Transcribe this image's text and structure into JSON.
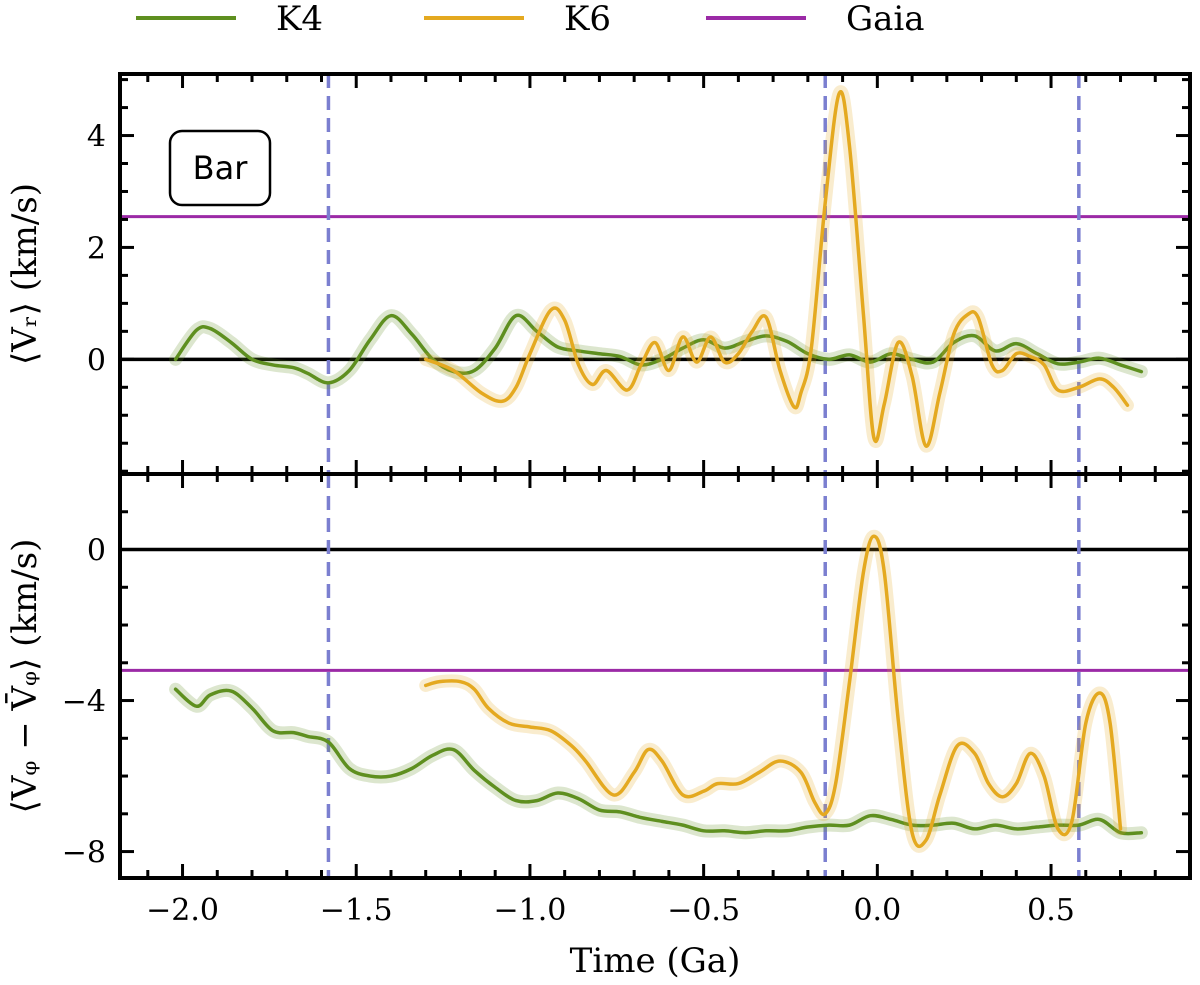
{
  "chart_data": {
    "type": "line",
    "legend": {
      "placement": "top",
      "entries": [
        {
          "name": "K4",
          "color": "#5e8f1f"
        },
        {
          "name": "K6",
          "color": "#e4a920"
        },
        {
          "name": "Gaia",
          "color": "#9b2aa6"
        }
      ]
    },
    "xlabel": "Time (Ga)",
    "xlim": [
      -2.18,
      0.9
    ],
    "xticks": [
      -2.0,
      -1.5,
      -1.0,
      -0.5,
      0.0,
      0.5
    ],
    "xtick_labels": [
      "−2.0",
      "−1.5",
      "−1.0",
      "−0.5",
      "0.0",
      "0.5"
    ],
    "vlines": [
      -1.58,
      -0.15,
      0.58
    ],
    "vline_color": "#7b7fd0",
    "panels": [
      {
        "name": "vr",
        "ylabel": "⟨Vᵣ⟩ (km/s)",
        "ylim": [
          -2.05,
          5.1
        ],
        "yticks": [
          0,
          2,
          4
        ],
        "ytick_labels": [
          "0",
          "2",
          "4"
        ],
        "annotation": "Bar",
        "zero_line": 0,
        "gaia": 2.55,
        "series": [
          {
            "name": "K4",
            "x": [
              -2.02,
              -1.96,
              -1.92,
              -1.86,
              -1.8,
              -1.74,
              -1.68,
              -1.64,
              -1.58,
              -1.52,
              -1.46,
              -1.4,
              -1.34,
              -1.28,
              -1.22,
              -1.16,
              -1.1,
              -1.04,
              -0.98,
              -0.92,
              -0.86,
              -0.8,
              -0.74,
              -0.68,
              -0.62,
              -0.56,
              -0.5,
              -0.44,
              -0.38,
              -0.32,
              -0.26,
              -0.2,
              -0.14,
              -0.08,
              -0.02,
              0.04,
              0.1,
              0.16,
              0.22,
              0.28,
              0.34,
              0.4,
              0.46,
              0.52,
              0.58,
              0.64,
              0.7,
              0.76
            ],
            "y": [
              0.0,
              0.52,
              0.55,
              0.3,
              0.0,
              -0.1,
              -0.15,
              -0.25,
              -0.42,
              -0.2,
              0.35,
              0.78,
              0.45,
              0.0,
              -0.22,
              -0.2,
              0.2,
              0.78,
              0.5,
              0.22,
              0.15,
              0.1,
              0.05,
              -0.1,
              0.0,
              0.2,
              0.35,
              0.2,
              0.32,
              0.42,
              0.32,
              0.1,
              0.0,
              0.08,
              -0.05,
              0.1,
              0.0,
              -0.05,
              0.3,
              0.42,
              0.15,
              0.28,
              0.1,
              -0.08,
              -0.05,
              0.02,
              -0.1,
              -0.22
            ]
          },
          {
            "name": "K6",
            "x": [
              -1.3,
              -1.22,
              -1.14,
              -1.08,
              -1.04,
              -1.0,
              -0.94,
              -0.9,
              -0.86,
              -0.82,
              -0.78,
              -0.72,
              -0.68,
              -0.64,
              -0.6,
              -0.56,
              -0.52,
              -0.48,
              -0.44,
              -0.4,
              -0.36,
              -0.32,
              -0.28,
              -0.24,
              -0.22,
              -0.19,
              -0.15,
              -0.11,
              -0.08,
              -0.04,
              -0.01,
              0.02,
              0.06,
              0.1,
              0.14,
              0.18,
              0.22,
              0.26,
              0.29,
              0.33,
              0.36,
              0.4,
              0.44,
              0.48,
              0.52,
              0.58,
              0.64,
              0.68,
              0.72
            ],
            "y": [
              0.0,
              -0.2,
              -0.6,
              -0.75,
              -0.5,
              0.1,
              0.88,
              0.7,
              -0.1,
              -0.45,
              -0.2,
              -0.55,
              -0.1,
              0.3,
              -0.2,
              0.4,
              -0.05,
              0.4,
              -0.05,
              0.1,
              0.5,
              0.75,
              -0.2,
              -0.85,
              -0.6,
              0.2,
              2.8,
              4.75,
              3.8,
              0.8,
              -1.4,
              -0.8,
              0.3,
              -0.3,
              -1.55,
              -0.6,
              0.45,
              0.8,
              0.75,
              -0.1,
              -0.2,
              0.1,
              0.05,
              -0.1,
              -0.55,
              -0.5,
              -0.35,
              -0.5,
              -0.82
            ]
          }
        ]
      },
      {
        "name": "vphi",
        "ylabel": "⟨Vᵩ − V̄ᵩ⟩ (km/s)",
        "ylim": [
          -8.7,
          2.0
        ],
        "yticks": [
          -8,
          -4,
          0
        ],
        "ytick_labels": [
          "−8",
          "−4",
          "0"
        ],
        "zero_line": 0,
        "gaia": -3.2,
        "series": [
          {
            "name": "K4",
            "x": [
              -2.02,
              -1.96,
              -1.92,
              -1.86,
              -1.8,
              -1.74,
              -1.68,
              -1.64,
              -1.58,
              -1.52,
              -1.46,
              -1.4,
              -1.34,
              -1.28,
              -1.22,
              -1.16,
              -1.1,
              -1.04,
              -0.98,
              -0.92,
              -0.86,
              -0.8,
              -0.74,
              -0.68,
              -0.62,
              -0.56,
              -0.5,
              -0.44,
              -0.38,
              -0.32,
              -0.26,
              -0.2,
              -0.14,
              -0.08,
              -0.02,
              0.04,
              0.1,
              0.16,
              0.22,
              0.28,
              0.34,
              0.4,
              0.46,
              0.52,
              0.58,
              0.64,
              0.7,
              0.76
            ],
            "y": [
              -3.7,
              -4.15,
              -3.85,
              -3.75,
              -4.2,
              -4.8,
              -4.85,
              -4.95,
              -5.1,
              -5.8,
              -6.0,
              -6.0,
              -5.8,
              -5.45,
              -5.3,
              -5.85,
              -6.3,
              -6.65,
              -6.65,
              -6.45,
              -6.6,
              -6.9,
              -6.95,
              -7.1,
              -7.2,
              -7.3,
              -7.45,
              -7.45,
              -7.5,
              -7.45,
              -7.45,
              -7.35,
              -7.3,
              -7.3,
              -7.05,
              -7.15,
              -7.3,
              -7.3,
              -7.25,
              -7.4,
              -7.3,
              -7.4,
              -7.35,
              -7.3,
              -7.3,
              -7.15,
              -7.5,
              -7.5
            ]
          },
          {
            "name": "K6",
            "x": [
              -1.3,
              -1.26,
              -1.2,
              -1.16,
              -1.12,
              -1.06,
              -1.0,
              -0.94,
              -0.88,
              -0.84,
              -0.76,
              -0.7,
              -0.66,
              -0.62,
              -0.56,
              -0.5,
              -0.46,
              -0.4,
              -0.34,
              -0.28,
              -0.22,
              -0.18,
              -0.15,
              -0.12,
              -0.08,
              -0.04,
              -0.01,
              0.02,
              0.06,
              0.1,
              0.14,
              0.18,
              0.23,
              0.28,
              0.32,
              0.36,
              0.4,
              0.44,
              0.48,
              0.52,
              0.56,
              0.6,
              0.64,
              0.67,
              0.7
            ],
            "y": [
              -3.6,
              -3.5,
              -3.5,
              -3.7,
              -4.2,
              -4.6,
              -4.7,
              -4.8,
              -5.2,
              -5.6,
              -6.5,
              -5.9,
              -5.3,
              -5.6,
              -6.5,
              -6.4,
              -6.2,
              -6.2,
              -5.9,
              -5.6,
              -5.9,
              -6.7,
              -7.0,
              -6.2,
              -3.5,
              -0.6,
              0.35,
              -0.6,
              -4.5,
              -7.5,
              -7.7,
              -6.5,
              -5.2,
              -5.4,
              -6.2,
              -6.55,
              -6.2,
              -5.4,
              -6.0,
              -7.4,
              -7.2,
              -4.6,
              -3.8,
              -4.6,
              -7.4
            ]
          }
        ]
      }
    ]
  }
}
